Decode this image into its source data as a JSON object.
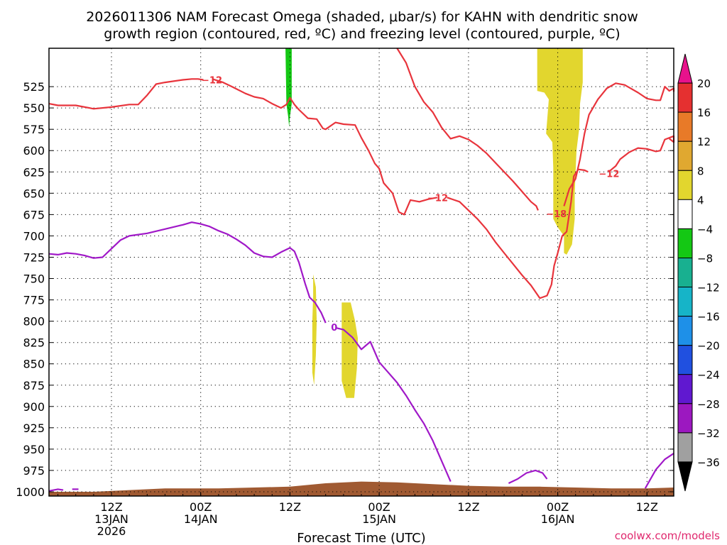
{
  "chart_data": {
    "type": "time-height",
    "title_line1": "2026011306 NAM Forecast Omega (shaded, μbar/s) for KAHN with dendritic snow",
    "title_line2": "growth region (contoured, red, ºC) and freezing level (contoured, purple, ºC)",
    "xlabel": "Forecast Time (UTC)",
    "credit": "coolwx.com/models",
    "x_range_hours": [
      -1,
      69
    ],
    "y_range_hPa": [
      1005,
      480
    ],
    "y_ticks": [
      525,
      550,
      575,
      600,
      625,
      650,
      675,
      700,
      725,
      750,
      775,
      800,
      825,
      850,
      875,
      900,
      925,
      950,
      975,
      1000
    ],
    "x_ticks": [
      {
        "hour": 6,
        "label": "12Z",
        "label2": "13JAN",
        "label3": "2026"
      },
      {
        "hour": 16,
        "label": "00Z",
        "label2": "14JAN",
        "label3": ""
      },
      {
        "hour": 26,
        "label": "12Z",
        "label2": "",
        "label3": ""
      },
      {
        "hour": 36,
        "label": "00Z",
        "label2": "15JAN",
        "label3": ""
      },
      {
        "hour": 46,
        "label": "12Z",
        "label2": "",
        "label3": ""
      },
      {
        "hour": 56,
        "label": "00Z",
        "label2": "16JAN",
        "label3": ""
      },
      {
        "hour": 66,
        "label": "12Z",
        "label2": "",
        "label3": ""
      }
    ],
    "colorbar": {
      "labels": [
        "20",
        "16",
        "12",
        "8",
        "4",
        "−4",
        "−8",
        "−12",
        "−16",
        "−20",
        "−24",
        "−28",
        "−32",
        "−36"
      ],
      "colors": [
        "#e8128c",
        "#e53030",
        "#e87a28",
        "#e0a830",
        "#e2d62e",
        "#ffffff",
        "#14c814",
        "#18b090",
        "#16b4c8",
        "#1e90e8",
        "#2050e0",
        "#6018d0",
        "#9c18c0",
        "#a0a0a0",
        "#000000"
      ]
    },
    "omega_shading": [
      {
        "name": "green-updraft",
        "color": "#14c814",
        "points": [
          [
            25.5,
            480
          ],
          [
            26.2,
            480
          ],
          [
            26.2,
            545
          ],
          [
            26.0,
            560
          ],
          [
            25.9,
            572
          ],
          [
            25.8,
            560
          ],
          [
            25.6,
            545
          ]
        ]
      },
      {
        "name": "yellow-left-thin",
        "color": "#e2d62e",
        "points": [
          [
            28.6,
            745
          ],
          [
            28.9,
            760
          ],
          [
            29.0,
            800
          ],
          [
            28.9,
            840
          ],
          [
            28.7,
            875
          ],
          [
            28.5,
            860
          ],
          [
            28.5,
            800
          ],
          [
            28.6,
            770
          ]
        ]
      },
      {
        "name": "yellow-mid",
        "color": "#e2d62e",
        "points": [
          [
            31.8,
            778
          ],
          [
            32.8,
            778
          ],
          [
            33.3,
            800
          ],
          [
            33.6,
            820
          ],
          [
            33.5,
            855
          ],
          [
            33.2,
            890
          ],
          [
            32.3,
            890
          ],
          [
            31.8,
            870
          ],
          [
            31.8,
            820
          ]
        ]
      },
      {
        "name": "yellow-right",
        "color": "#e2d62e",
        "points": [
          [
            53.7,
            480
          ],
          [
            58.8,
            480
          ],
          [
            58.8,
            520
          ],
          [
            58.5,
            545
          ],
          [
            58.4,
            575
          ],
          [
            58.1,
            600
          ],
          [
            57.9,
            650
          ],
          [
            57.9,
            680
          ],
          [
            57.6,
            710
          ],
          [
            57.0,
            722
          ],
          [
            56.7,
            720
          ],
          [
            56.7,
            700
          ],
          [
            56.0,
            690
          ],
          [
            55.5,
            680
          ],
          [
            55.5,
            620
          ],
          [
            55.4,
            590
          ],
          [
            54.7,
            580
          ],
          [
            55.0,
            540
          ],
          [
            54.5,
            532
          ],
          [
            53.7,
            530
          ]
        ]
      }
    ],
    "contours": [
      {
        "name": "dgz-upper-left",
        "label": "−12",
        "label_at": [
          16.1,
          517
        ],
        "color": "#e8343c",
        "points": [
          [
            -1,
            545
          ],
          [
            0,
            547
          ],
          [
            2,
            547
          ],
          [
            4,
            551
          ],
          [
            6,
            549
          ],
          [
            8,
            546
          ],
          [
            9,
            546
          ],
          [
            10,
            535
          ],
          [
            11,
            522
          ],
          [
            12,
            520
          ],
          [
            14,
            517
          ],
          [
            15,
            516
          ],
          [
            15.7,
            516
          ],
          [
            16.3,
            517
          ]
        ]
      },
      {
        "name": "dgz-upper-right",
        "label": "",
        "label_at": null,
        "color": "#e8343c",
        "points": [
          [
            17.3,
            516
          ],
          [
            18.5,
            520
          ],
          [
            19.5,
            525
          ],
          [
            21,
            533
          ],
          [
            22,
            537
          ],
          [
            23,
            539
          ],
          [
            24,
            545
          ],
          [
            25,
            550
          ],
          [
            25.6,
            546
          ],
          [
            26.0,
            538
          ],
          [
            26.5,
            546
          ],
          [
            27,
            552
          ],
          [
            28,
            562
          ],
          [
            29,
            563
          ],
          [
            29.7,
            574
          ],
          [
            30,
            575
          ],
          [
            31.1,
            567
          ],
          [
            32,
            569
          ],
          [
            33.3,
            570
          ],
          [
            34,
            585
          ],
          [
            34.8,
            600
          ],
          [
            35.5,
            615
          ],
          [
            36,
            621
          ],
          [
            36.5,
            638
          ],
          [
            37.5,
            650
          ],
          [
            38.2,
            672
          ],
          [
            38.8,
            675
          ],
          [
            39.5,
            658
          ],
          [
            40.5,
            660
          ],
          [
            41.5,
            657
          ],
          [
            42.5,
            655
          ]
        ]
      },
      {
        "name": "dgz-top-edge",
        "label": "",
        "label_at": null,
        "color": "#e8343c",
        "points": [
          [
            38,
            480
          ],
          [
            39,
            497
          ],
          [
            40,
            525
          ],
          [
            41,
            543
          ],
          [
            42,
            555
          ],
          [
            43,
            573
          ],
          [
            44,
            586
          ],
          [
            45,
            583
          ],
          [
            46,
            587
          ],
          [
            47,
            594
          ],
          [
            48,
            603
          ],
          [
            49,
            614
          ],
          [
            50,
            625
          ],
          [
            51,
            636
          ],
          [
            52,
            648
          ],
          [
            53,
            660
          ],
          [
            53.6,
            665
          ],
          [
            53.8,
            670
          ]
        ]
      },
      {
        "name": "dgz-lower-loop",
        "label": "",
        "label_at": null,
        "color": "#e8343c",
        "points": [
          [
            43.6,
            655
          ],
          [
            45,
            660
          ],
          [
            47,
            680
          ],
          [
            48,
            692
          ],
          [
            49,
            707
          ],
          [
            50,
            720
          ],
          [
            51,
            733
          ],
          [
            52,
            746
          ],
          [
            53,
            758
          ],
          [
            54,
            773
          ],
          [
            54.8,
            770
          ],
          [
            55.3,
            757
          ],
          [
            55.6,
            735
          ],
          [
            56,
            720
          ],
          [
            56.5,
            700
          ],
          [
            57,
            695
          ],
          [
            57.5,
            660
          ],
          [
            57.8,
            630
          ],
          [
            58.3,
            622
          ],
          [
            59,
            623
          ],
          [
            59.4,
            625
          ]
        ]
      },
      {
        "name": "dgz-right-lower",
        "label": "",
        "label_at": null,
        "color": "#e8343c",
        "points": [
          [
            61.7,
            625
          ],
          [
            62.5,
            618
          ],
          [
            63,
            610
          ],
          [
            64,
            602
          ],
          [
            65,
            597
          ],
          [
            66,
            598
          ],
          [
            67,
            601
          ],
          [
            67.5,
            600
          ],
          [
            68,
            587
          ],
          [
            69,
            583
          ],
          [
            69,
            590
          ],
          [
            68.5,
            586
          ]
        ]
      },
      {
        "name": "dgz-right-upper",
        "label": "",
        "label_at": null,
        "color": "#e8343c",
        "points": [
          [
            56.7,
            665
          ],
          [
            57.3,
            645
          ],
          [
            58,
            633
          ],
          [
            58.5,
            610
          ],
          [
            59,
            580
          ],
          [
            59.5,
            558
          ],
          [
            60.5,
            540
          ],
          [
            61.5,
            527
          ],
          [
            62.5,
            521
          ],
          [
            63.5,
            523
          ],
          [
            65,
            532
          ],
          [
            66,
            539
          ],
          [
            67,
            541
          ],
          [
            67.5,
            541
          ],
          [
            68,
            525
          ],
          [
            68.5,
            530
          ],
          [
            69,
            527
          ],
          [
            69,
            531
          ]
        ]
      },
      {
        "name": "freezing-level",
        "label": "0",
        "label_at": [
          30.6,
          807
        ],
        "color": "#a018c8",
        "points": [
          [
            -1,
            721
          ],
          [
            0,
            722
          ],
          [
            1,
            720
          ],
          [
            2,
            721
          ],
          [
            3,
            723
          ],
          [
            4,
            726
          ],
          [
            5,
            725
          ],
          [
            6,
            715
          ],
          [
            7,
            705
          ],
          [
            8,
            700
          ],
          [
            10,
            697
          ],
          [
            12,
            692
          ],
          [
            14,
            687
          ],
          [
            15,
            684
          ],
          [
            16,
            686
          ],
          [
            17,
            689
          ],
          [
            18,
            694
          ],
          [
            19,
            698
          ],
          [
            20,
            704
          ],
          [
            21,
            711
          ],
          [
            22,
            720
          ],
          [
            23,
            724
          ],
          [
            24,
            725
          ],
          [
            25,
            719
          ],
          [
            26,
            714
          ],
          [
            26.5,
            718
          ],
          [
            27,
            731
          ],
          [
            27.7,
            756
          ],
          [
            28.2,
            772
          ],
          [
            28.8,
            778
          ],
          [
            29.5,
            790
          ],
          [
            30.0,
            802
          ]
        ]
      },
      {
        "name": "freezing-level-lower",
        "label": "",
        "label_at": null,
        "color": "#a018c8",
        "points": [
          [
            31.2,
            808
          ],
          [
            32,
            810
          ],
          [
            33,
            819
          ],
          [
            34,
            833
          ],
          [
            35,
            824
          ],
          [
            36,
            848
          ],
          [
            37,
            860
          ],
          [
            38,
            872
          ],
          [
            39,
            887
          ],
          [
            40,
            904
          ],
          [
            41,
            920
          ],
          [
            42,
            940
          ],
          [
            43,
            964
          ],
          [
            44,
            988
          ]
        ]
      },
      {
        "name": "freezing-level-blip",
        "label": "",
        "label_at": null,
        "color": "#a018c8",
        "points": [
          [
            50.5,
            990
          ],
          [
            51.5,
            985
          ],
          [
            52.5,
            978
          ],
          [
            53.5,
            975
          ],
          [
            54.3,
            978
          ],
          [
            54.8,
            985
          ]
        ]
      },
      {
        "name": "freezing-level-left-stub",
        "label": "",
        "label_at": null,
        "color": "#a018c8",
        "points": [
          [
            -1,
            999
          ],
          [
            0,
            997
          ],
          [
            0.6,
            998
          ]
        ]
      },
      {
        "name": "freezing-level-left-stub2",
        "label": "",
        "label_at": null,
        "color": "#a018c8",
        "points": [
          [
            1.6,
            997
          ],
          [
            2.3,
            997
          ]
        ]
      },
      {
        "name": "freezing-level-right",
        "label": "",
        "label_at": null,
        "color": "#a018c8",
        "points": [
          [
            65.8,
            996
          ],
          [
            67,
            974
          ],
          [
            68,
            962
          ],
          [
            69,
            955
          ]
        ]
      }
    ],
    "isolated_labels": [
      {
        "text": "−12",
        "at": [
          41.4,
          655
        ],
        "color": "#e8343c"
      },
      {
        "text": "−18",
        "at": [
          54.7,
          674
        ],
        "color": "#e8343c"
      },
      {
        "text": "−12",
        "at": [
          60.6,
          627
        ],
        "color": "#e8343c"
      }
    ],
    "terrain": {
      "color": "#a05a32",
      "top_hPa": [
        [
          -1,
          1000
        ],
        [
          4,
          1000
        ],
        [
          8,
          998
        ],
        [
          12,
          996
        ],
        [
          18,
          996
        ],
        [
          22,
          995
        ],
        [
          26,
          994
        ],
        [
          30,
          990
        ],
        [
          34,
          988
        ],
        [
          38,
          989
        ],
        [
          42,
          991
        ],
        [
          46,
          993
        ],
        [
          50,
          994
        ],
        [
          54,
          994
        ],
        [
          58,
          995
        ],
        [
          62,
          996
        ],
        [
          66,
          996
        ],
        [
          69,
          995
        ]
      ]
    }
  }
}
